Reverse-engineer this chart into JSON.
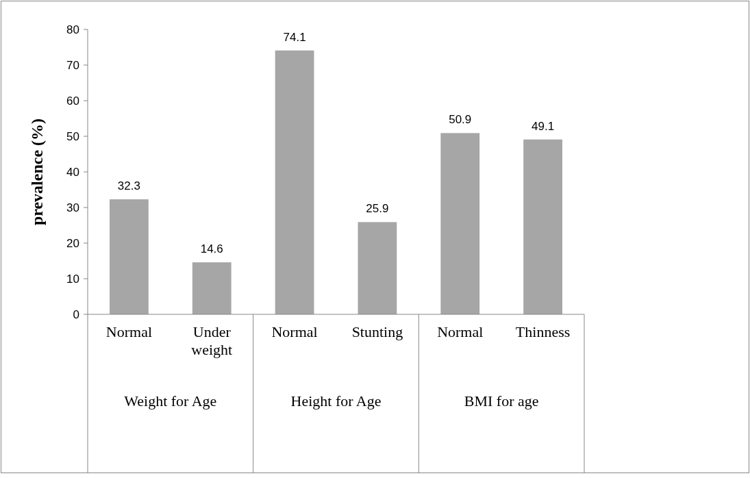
{
  "chart_data": {
    "type": "bar",
    "ylabel": "prevalence (%)",
    "categories": [
      "Normal",
      "Under weight",
      "Normal",
      "Stunting",
      "Normal",
      "Thinness"
    ],
    "values": [
      32.3,
      14.6,
      74.1,
      25.9,
      50.9,
      49.1
    ],
    "color": "#a6a6a6",
    "ylim": [
      0,
      80
    ],
    "yticks": [
      0,
      10,
      20,
      30,
      40,
      50,
      60,
      70,
      80
    ],
    "data_labels": true,
    "grid": false,
    "annotations": [
      "Weight for Age",
      "Height for Age",
      "BMI for age"
    ]
  }
}
